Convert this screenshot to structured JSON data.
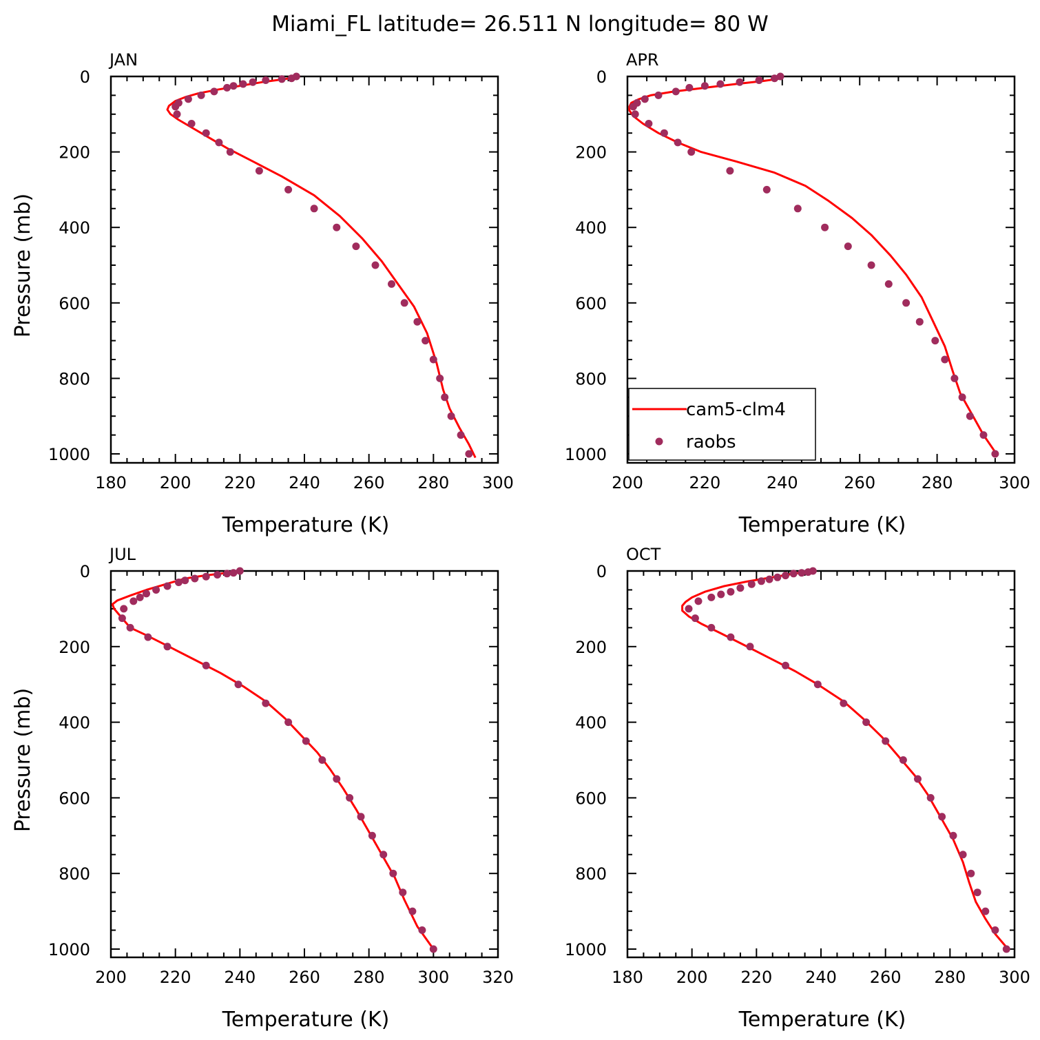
{
  "figure_title": "Miami_FL  latitude= 26.511 N longitude= 80 W",
  "legend": {
    "line_label": "cam5-clm4",
    "dots_label": "raobs"
  },
  "colors": {
    "model_line": "#ff0000",
    "obs_dots": "#a02c5d"
  },
  "chart_data": [
    {
      "type": "line",
      "panel": "JAN",
      "xlabel": "Temperature (K)",
      "ylabel": "Pressure (mb)",
      "xlim": [
        180,
        300
      ],
      "ylim": [
        1000,
        0
      ],
      "xticks": [
        180,
        200,
        220,
        240,
        260,
        280,
        300
      ],
      "yticks": [
        0,
        200,
        400,
        600,
        800,
        1000
      ],
      "series": [
        {
          "name": "cam5-clm4",
          "points": [
            [
              237,
              3
            ],
            [
              233,
              8
            ],
            [
              227,
              15
            ],
            [
              220,
              25
            ],
            [
              213,
              35
            ],
            [
              207,
              45
            ],
            [
              203,
              55
            ],
            [
              200,
              65
            ],
            [
              198,
              78
            ],
            [
              197.5,
              88
            ],
            [
              198.5,
              100
            ],
            [
              201,
              115
            ],
            [
              205,
              135
            ],
            [
              210,
              160
            ],
            [
              216,
              190
            ],
            [
              224,
              225
            ],
            [
              233,
              265
            ],
            [
              243,
              315
            ],
            [
              251,
              370
            ],
            [
              258,
              430
            ],
            [
              264,
              490
            ],
            [
              269,
              550
            ],
            [
              274,
              610
            ],
            [
              278,
              680
            ],
            [
              281,
              760
            ],
            [
              283,
              830
            ],
            [
              285,
              880
            ],
            [
              288,
              930
            ],
            [
              291,
              975
            ],
            [
              293,
              1010
            ]
          ]
        },
        {
          "name": "raobs",
          "points": [
            [
              237.5,
              0
            ],
            [
              236,
              5
            ],
            [
              233,
              7
            ],
            [
              228,
              10
            ],
            [
              224,
              15
            ],
            [
              221,
              20
            ],
            [
              218,
              25
            ],
            [
              216,
              30
            ],
            [
              212,
              40
            ],
            [
              208,
              50
            ],
            [
              204,
              60
            ],
            [
              201,
              70
            ],
            [
              200,
              80
            ],
            [
              200.5,
              100
            ],
            [
              205,
              125
            ],
            [
              209.5,
              150
            ],
            [
              213.5,
              175
            ],
            [
              217,
              200
            ],
            [
              226,
              250
            ],
            [
              235,
              300
            ],
            [
              243,
              350
            ],
            [
              250,
              400
            ],
            [
              256,
              450
            ],
            [
              262,
              500
            ],
            [
              267,
              550
            ],
            [
              271,
              600
            ],
            [
              275,
              650
            ],
            [
              277.5,
              700
            ],
            [
              280,
              750
            ],
            [
              282,
              800
            ],
            [
              283.5,
              850
            ],
            [
              285.5,
              900
            ],
            [
              288.5,
              950
            ],
            [
              291,
              1000
            ]
          ]
        }
      ]
    },
    {
      "type": "line",
      "panel": "APR",
      "xlabel": "Temperature (K)",
      "ylabel": "",
      "xlim": [
        200,
        300
      ],
      "ylim": [
        1000,
        0
      ],
      "xticks": [
        200,
        220,
        240,
        260,
        280,
        300
      ],
      "yticks": [
        0,
        200,
        400,
        600,
        800,
        1000
      ],
      "legend_panel": true,
      "series": [
        {
          "name": "cam5-clm4",
          "points": [
            [
              240,
              5
            ],
            [
              235,
              12
            ],
            [
              228,
              20
            ],
            [
              220,
              30
            ],
            [
              212,
              40
            ],
            [
              206,
              50
            ],
            [
              203,
              60
            ],
            [
              201,
              70
            ],
            [
              200.5,
              80
            ],
            [
              200.5,
              90
            ],
            [
              201.5,
              105
            ],
            [
              204,
              125
            ],
            [
              208,
              150
            ],
            [
              213,
              175
            ],
            [
              219,
              200
            ],
            [
              228,
              225
            ],
            [
              238,
              255
            ],
            [
              246,
              290
            ],
            [
              252,
              330
            ],
            [
              258,
              375
            ],
            [
              263,
              420
            ],
            [
              268,
              475
            ],
            [
              272,
              525
            ],
            [
              276,
              585
            ],
            [
              279,
              650
            ],
            [
              282,
              715
            ],
            [
              284,
              780
            ],
            [
              286,
              840
            ],
            [
              289,
              895
            ],
            [
              292,
              950
            ],
            [
              295,
              995
            ]
          ]
        },
        {
          "name": "raobs",
          "points": [
            [
              239.5,
              0
            ],
            [
              238,
              5
            ],
            [
              234,
              10
            ],
            [
              229,
              15
            ],
            [
              224,
              20
            ],
            [
              220,
              25
            ],
            [
              216,
              30
            ],
            [
              212.5,
              40
            ],
            [
              208,
              50
            ],
            [
              204.5,
              60
            ],
            [
              202.5,
              70
            ],
            [
              201.5,
              80
            ],
            [
              202,
              100
            ],
            [
              205.5,
              125
            ],
            [
              209.5,
              150
            ],
            [
              213,
              175
            ],
            [
              216.5,
              200
            ],
            [
              226.5,
              250
            ],
            [
              236,
              300
            ],
            [
              244,
              350
            ],
            [
              251,
              400
            ],
            [
              257,
              450
            ],
            [
              263,
              500
            ],
            [
              267.5,
              550
            ],
            [
              272,
              600
            ],
            [
              275.5,
              650
            ],
            [
              279.5,
              700
            ],
            [
              282,
              750
            ],
            [
              284.5,
              800
            ],
            [
              286.5,
              850
            ],
            [
              288.5,
              900
            ],
            [
              292,
              950
            ],
            [
              295,
              1000
            ]
          ]
        }
      ]
    },
    {
      "type": "line",
      "panel": "JUL",
      "xlabel": "Temperature (K)",
      "ylabel": "Pressure (mb)",
      "xlim": [
        200,
        320
      ],
      "ylim": [
        1000,
        0
      ],
      "xticks": [
        200,
        220,
        240,
        260,
        280,
        300,
        320
      ],
      "yticks": [
        0,
        200,
        400,
        600,
        800,
        1000
      ],
      "series": [
        {
          "name": "cam5-clm4",
          "points": [
            [
              241,
              0
            ],
            [
              236,
              5
            ],
            [
              229,
              12
            ],
            [
              223,
              20
            ],
            [
              217,
              35
            ],
            [
              211,
              50
            ],
            [
              206,
              65
            ],
            [
              202,
              78
            ],
            [
              200.5,
              88
            ],
            [
              201,
              100
            ],
            [
              202.5,
              115
            ],
            [
              204,
              130
            ],
            [
              206,
              150
            ],
            [
              211,
              170
            ],
            [
              218,
              200
            ],
            [
              226,
              235
            ],
            [
              234,
              270
            ],
            [
              241,
              305
            ],
            [
              248,
              345
            ],
            [
              254,
              390
            ],
            [
              259,
              435
            ],
            [
              264,
              480
            ],
            [
              268,
              525
            ],
            [
              272,
              575
            ],
            [
              276,
              630
            ],
            [
              280,
              690
            ],
            [
              284,
              750
            ],
            [
              288,
              810
            ],
            [
              291,
              870
            ],
            [
              295,
              940
            ],
            [
              300,
              1000
            ]
          ]
        },
        {
          "name": "raobs",
          "points": [
            [
              240,
              0
            ],
            [
              238,
              5
            ],
            [
              236,
              7
            ],
            [
              233,
              10
            ],
            [
              229.5,
              15
            ],
            [
              226,
              20
            ],
            [
              223,
              25
            ],
            [
              221,
              30
            ],
            [
              217.5,
              40
            ],
            [
              214,
              50
            ],
            [
              211,
              60
            ],
            [
              209,
              70
            ],
            [
              207,
              80
            ],
            [
              204,
              100
            ],
            [
              203.5,
              125
            ],
            [
              206,
              150
            ],
            [
              211.5,
              175
            ],
            [
              217.5,
              200
            ],
            [
              229.5,
              250
            ],
            [
              239.5,
              300
            ],
            [
              248,
              350
            ],
            [
              255,
              400
            ],
            [
              260.5,
              450
            ],
            [
              265.5,
              500
            ],
            [
              270,
              550
            ],
            [
              274,
              600
            ],
            [
              277.5,
              650
            ],
            [
              281,
              700
            ],
            [
              284.5,
              750
            ],
            [
              287.5,
              800
            ],
            [
              290.5,
              850
            ],
            [
              293.5,
              900
            ],
            [
              296.5,
              950
            ],
            [
              300,
              1000
            ]
          ]
        }
      ]
    },
    {
      "type": "line",
      "panel": "OCT",
      "xlabel": "Temperature (K)",
      "ylabel": "",
      "xlim": [
        180,
        300
      ],
      "ylim": [
        1000,
        0
      ],
      "xticks": [
        180,
        200,
        220,
        240,
        260,
        280,
        300
      ],
      "yticks": [
        0,
        200,
        400,
        600,
        800,
        1000
      ],
      "series": [
        {
          "name": "cam5-clm4",
          "points": [
            [
              237,
              0
            ],
            [
              231,
              8
            ],
            [
              224,
              18
            ],
            [
              217,
              28
            ],
            [
              210,
              40
            ],
            [
              204,
              55
            ],
            [
              200,
              70
            ],
            [
              198,
              82
            ],
            [
              197,
              92
            ],
            [
              197,
              105
            ],
            [
              199,
              120
            ],
            [
              203,
              140
            ],
            [
              209,
              165
            ],
            [
              216,
              195
            ],
            [
              224,
              230
            ],
            [
              232,
              265
            ],
            [
              239,
              300
            ],
            [
              247,
              345
            ],
            [
              253,
              390
            ],
            [
              259,
              440
            ],
            [
              264,
              490
            ],
            [
              269,
              540
            ],
            [
              273,
              590
            ],
            [
              277,
              650
            ],
            [
              281,
              710
            ],
            [
              284,
              770
            ],
            [
              286,
              825
            ],
            [
              288,
              875
            ],
            [
              291,
              920
            ],
            [
              294,
              960
            ],
            [
              298,
              1000
            ]
          ]
        },
        {
          "name": "raobs",
          "points": [
            [
              237.5,
              0
            ],
            [
              236,
              3
            ],
            [
              234,
              5
            ],
            [
              231.5,
              7
            ],
            [
              229,
              12
            ],
            [
              226.5,
              17
            ],
            [
              224,
              22
            ],
            [
              221.5,
              27
            ],
            [
              218.5,
              35
            ],
            [
              215,
              45
            ],
            [
              212,
              55
            ],
            [
              209,
              62
            ],
            [
              206,
              70
            ],
            [
              202,
              80
            ],
            [
              199,
              100
            ],
            [
              201,
              125
            ],
            [
              206,
              150
            ],
            [
              212,
              175
            ],
            [
              218,
              200
            ],
            [
              229,
              250
            ],
            [
              239,
              300
            ],
            [
              247,
              350
            ],
            [
              254,
              400
            ],
            [
              260,
              450
            ],
            [
              265.5,
              500
            ],
            [
              270,
              550
            ],
            [
              274,
              600
            ],
            [
              277.5,
              650
            ],
            [
              281,
              700
            ],
            [
              284,
              750
            ],
            [
              286.5,
              800
            ],
            [
              288.5,
              850
            ],
            [
              291,
              900
            ],
            [
              294,
              950
            ],
            [
              297.5,
              1000
            ]
          ]
        }
      ]
    }
  ]
}
